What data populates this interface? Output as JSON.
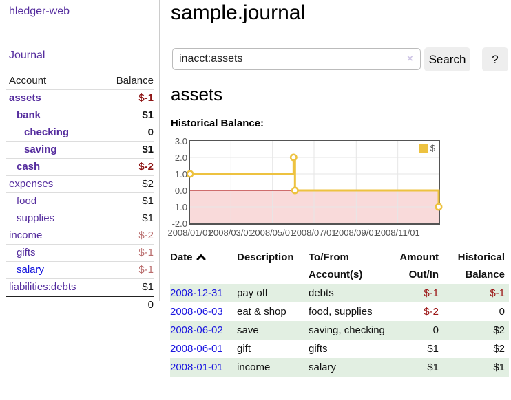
{
  "app": {
    "brand": "hledger-web",
    "nav_journal": "Journal"
  },
  "sidebar": {
    "accounts_header": {
      "account": "Account",
      "balance": "Balance"
    },
    "accounts": [
      {
        "name": "assets",
        "balance": "$-1",
        "depth": 1,
        "bold": true,
        "balance_class": "neg-strong"
      },
      {
        "name": "bank",
        "balance": "$1",
        "depth": 2,
        "bold": true,
        "balance_class": "pos"
      },
      {
        "name": "checking",
        "balance": "0",
        "depth": 3,
        "bold": true,
        "balance_class": "pos"
      },
      {
        "name": "saving",
        "balance": "$1",
        "depth": 3,
        "bold": true,
        "balance_class": "pos"
      },
      {
        "name": "cash",
        "balance": "$-2",
        "depth": 2,
        "bold": true,
        "balance_class": "neg-strong"
      },
      {
        "name": "expenses",
        "balance": "$2",
        "depth": 1,
        "bold": false,
        "balance_class": "pos"
      },
      {
        "name": "food",
        "balance": "$1",
        "depth": 2,
        "bold": false,
        "balance_class": "pos"
      },
      {
        "name": "supplies",
        "balance": "$1",
        "depth": 2,
        "bold": false,
        "balance_class": "pos"
      },
      {
        "name": "income",
        "balance": "$-2",
        "depth": 1,
        "bold": false,
        "balance_class": "neg-soft"
      },
      {
        "name": "gifts",
        "balance": "$-1",
        "depth": 2,
        "bold": false,
        "balance_class": "neg-soft"
      },
      {
        "name": "salary",
        "balance": "$-1",
        "depth": 2,
        "bold": false,
        "balance_class": "neg-soft",
        "link_class": "unvisited"
      },
      {
        "name": "liabilities:debts",
        "balance": "$1",
        "depth": 1,
        "bold": false,
        "balance_class": "pos"
      }
    ],
    "total": "0"
  },
  "header": {
    "title": "sample.journal"
  },
  "search": {
    "query": "inacct:assets",
    "clear_icon": "×",
    "button_label": "Search",
    "help_label": "?"
  },
  "register": {
    "account_title": "assets",
    "chart_label": "Historical Balance:",
    "table": {
      "headers": {
        "date": "Date",
        "description": "Description",
        "accounts": "To/From Account(s)",
        "amount": "Amount Out/In",
        "balance": "Historical Balance"
      },
      "rows": [
        {
          "date": "2008-12-31",
          "description": "pay off",
          "accounts": "debts",
          "amount": "$-1",
          "amount_negative": true,
          "balance": "$-1",
          "balance_negative": true
        },
        {
          "date": "2008-06-03",
          "description": "eat & shop",
          "accounts": "food, supplies",
          "amount": "$-2",
          "amount_negative": true,
          "balance": "0",
          "balance_negative": false
        },
        {
          "date": "2008-06-02",
          "description": "save",
          "accounts": "saving, checking",
          "amount": "0",
          "amount_negative": false,
          "balance": "$2",
          "balance_negative": false
        },
        {
          "date": "2008-06-01",
          "description": "gift",
          "accounts": "gifts",
          "amount": "$1",
          "amount_negative": false,
          "balance": "$2",
          "balance_negative": false
        },
        {
          "date": "2008-01-01",
          "description": "income",
          "accounts": "salary",
          "amount": "$1",
          "amount_negative": false,
          "balance": "$1",
          "balance_negative": false
        }
      ]
    }
  },
  "chart_data": {
    "type": "line",
    "step": true,
    "title": "Historical Balance",
    "series": [
      {
        "name": "$",
        "color": "#edc240",
        "points": [
          {
            "date": "2008-01-01",
            "day": 0,
            "value": 1
          },
          {
            "date": "2008-06-01",
            "day": 152,
            "value": 2
          },
          {
            "date": "2008-06-03",
            "day": 154,
            "value": 0
          },
          {
            "date": "2008-12-31",
            "day": 365,
            "value": -1
          }
        ]
      }
    ],
    "x_ticks": [
      {
        "label": "2008/01/01",
        "day": 0
      },
      {
        "label": "2008/03/01",
        "day": 60
      },
      {
        "label": "2008/05/01",
        "day": 121
      },
      {
        "label": "2008/07/01",
        "day": 182
      },
      {
        "label": "2008/09/01",
        "day": 244
      },
      {
        "label": "2008/11/01",
        "day": 305
      }
    ],
    "y_ticks": [
      3.0,
      2.0,
      1.0,
      0.0,
      -1.0,
      -2.0
    ],
    "ylim": [
      -2,
      3
    ],
    "xlim_days": [
      0,
      365
    ],
    "grid_on": true,
    "legend_position": "top-right",
    "negative_region_color": "#f9dada",
    "zero_line_color": "#a40000",
    "grid_color": "#e6e6e6",
    "border_color": "#545454"
  }
}
